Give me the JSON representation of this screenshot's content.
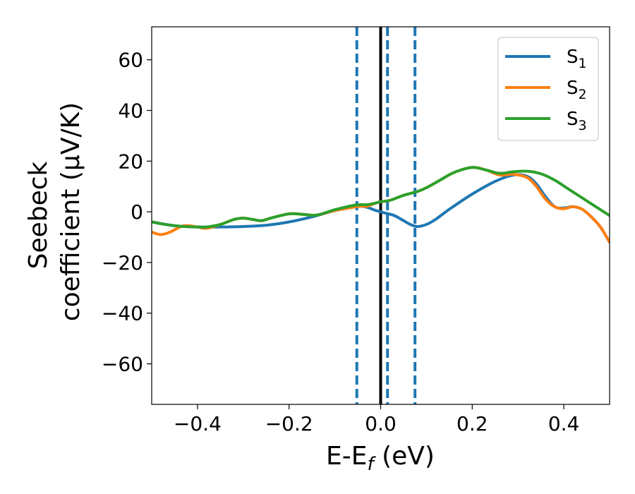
{
  "chart_data": {
    "type": "line",
    "xlabel": "E-E",
    "xlabel_sub": "f",
    "xlabel_unit": " (eV)",
    "ylabel_line1": "Seebeck",
    "ylabel_line2": "coefficient  (μV/K)",
    "xlim": [
      -0.5,
      0.5
    ],
    "ylim": [
      -76,
      73
    ],
    "xticks": [
      -0.4,
      -0.2,
      0.0,
      0.2,
      0.4
    ],
    "xtick_labels": [
      "−0.4",
      "−0.2",
      "0.0",
      "0.2",
      "0.4"
    ],
    "yticks": [
      -60,
      -40,
      -20,
      0,
      20,
      40,
      60
    ],
    "ytick_labels": [
      "−60",
      "−40",
      "−20",
      "0",
      "20",
      "40",
      "60"
    ],
    "vlines_dashed": [
      -0.052,
      0.015,
      0.075
    ],
    "vline_solid": 0.0,
    "legend_position": "top-right",
    "series": [
      {
        "name": "S",
        "sub": "1",
        "color": "#1f77b4",
        "points": [
          [
            -0.5,
            -4
          ],
          [
            -0.45,
            -5.5
          ],
          [
            -0.4,
            -6
          ],
          [
            -0.35,
            -6
          ],
          [
            -0.3,
            -5.8
          ],
          [
            -0.25,
            -5.3
          ],
          [
            -0.2,
            -4
          ],
          [
            -0.15,
            -2
          ],
          [
            -0.1,
            0.5
          ],
          [
            -0.06,
            2
          ],
          [
            -0.045,
            2.2
          ],
          [
            -0.03,
            1.8
          ],
          [
            -0.01,
            0.5
          ],
          [
            0.0,
            0
          ],
          [
            0.01,
            -0.5
          ],
          [
            0.03,
            -1.5
          ],
          [
            0.05,
            -3.5
          ],
          [
            0.065,
            -5
          ],
          [
            0.08,
            -5.8
          ],
          [
            0.1,
            -5
          ],
          [
            0.12,
            -3
          ],
          [
            0.15,
            1
          ],
          [
            0.2,
            7
          ],
          [
            0.25,
            12
          ],
          [
            0.29,
            14.5
          ],
          [
            0.32,
            14
          ],
          [
            0.34,
            11
          ],
          [
            0.36,
            6
          ],
          [
            0.38,
            2
          ],
          [
            0.4,
            1.5
          ],
          [
            0.42,
            2
          ],
          [
            0.44,
            1
          ],
          [
            0.46,
            -2
          ],
          [
            0.48,
            -6
          ],
          [
            0.5,
            -12
          ]
        ]
      },
      {
        "name": "S",
        "sub": "2",
        "color": "#ff7f0e",
        "points": [
          [
            -0.5,
            -8
          ],
          [
            -0.48,
            -9
          ],
          [
            -0.46,
            -8
          ],
          [
            -0.43,
            -5.5
          ],
          [
            -0.4,
            -6
          ],
          [
            -0.38,
            -6.5
          ],
          [
            -0.35,
            -5
          ],
          [
            -0.32,
            -3
          ],
          [
            -0.3,
            -2.5
          ],
          [
            -0.28,
            -3
          ],
          [
            -0.26,
            -3.5
          ],
          [
            -0.24,
            -2.5
          ],
          [
            -0.2,
            -0.8
          ],
          [
            -0.17,
            -1
          ],
          [
            -0.14,
            -1.3
          ],
          [
            -0.1,
            0.5
          ],
          [
            -0.06,
            1.8
          ],
          [
            -0.045,
            2.2
          ],
          [
            -0.03,
            2.2
          ],
          [
            -0.01,
            3.5
          ],
          [
            0.0,
            4
          ],
          [
            0.02,
            4.5
          ],
          [
            0.05,
            6.5
          ],
          [
            0.08,
            8
          ],
          [
            0.1,
            9.5
          ],
          [
            0.13,
            12.5
          ],
          [
            0.16,
            15.5
          ],
          [
            0.2,
            17.5
          ],
          [
            0.23,
            16.5
          ],
          [
            0.26,
            14.5
          ],
          [
            0.29,
            14.8
          ],
          [
            0.32,
            13.5
          ],
          [
            0.34,
            10
          ],
          [
            0.36,
            5
          ],
          [
            0.38,
            2
          ],
          [
            0.4,
            1.2
          ],
          [
            0.42,
            2
          ],
          [
            0.44,
            1
          ],
          [
            0.46,
            -2
          ],
          [
            0.48,
            -6
          ],
          [
            0.5,
            -12
          ]
        ]
      },
      {
        "name": "S",
        "sub": "3",
        "color": "#2ca02c",
        "points": [
          [
            -0.5,
            -4
          ],
          [
            -0.47,
            -5
          ],
          [
            -0.43,
            -5.8
          ],
          [
            -0.4,
            -6
          ],
          [
            -0.38,
            -6
          ],
          [
            -0.35,
            -5
          ],
          [
            -0.32,
            -3
          ],
          [
            -0.3,
            -2.5
          ],
          [
            -0.28,
            -3
          ],
          [
            -0.26,
            -3.5
          ],
          [
            -0.24,
            -2.5
          ],
          [
            -0.2,
            -0.8
          ],
          [
            -0.17,
            -1
          ],
          [
            -0.14,
            -1.3
          ],
          [
            -0.1,
            0.8
          ],
          [
            -0.06,
            2.5
          ],
          [
            -0.045,
            2.8
          ],
          [
            -0.03,
            2.8
          ],
          [
            -0.01,
            3.5
          ],
          [
            0.0,
            4
          ],
          [
            0.02,
            4.5
          ],
          [
            0.05,
            6.5
          ],
          [
            0.08,
            8
          ],
          [
            0.1,
            9.5
          ],
          [
            0.13,
            12.5
          ],
          [
            0.16,
            15.5
          ],
          [
            0.2,
            17.5
          ],
          [
            0.23,
            16.5
          ],
          [
            0.26,
            15.2
          ],
          [
            0.29,
            15.8
          ],
          [
            0.32,
            16
          ],
          [
            0.35,
            15
          ],
          [
            0.38,
            12.5
          ],
          [
            0.41,
            9
          ],
          [
            0.44,
            5.5
          ],
          [
            0.47,
            2
          ],
          [
            0.5,
            -1.5
          ]
        ]
      }
    ]
  }
}
